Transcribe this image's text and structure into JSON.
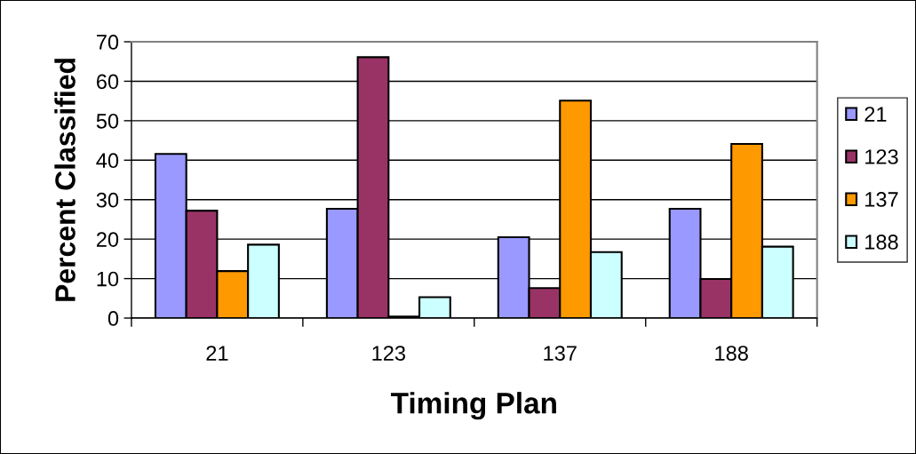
{
  "chart_data": {
    "type": "bar",
    "xlabel": "Timing Plan",
    "ylabel": "Percent Classified",
    "categories": [
      "21",
      "123",
      "137",
      "188"
    ],
    "series": [
      {
        "name": "21",
        "color": "#9999ff",
        "values": [
          41.6,
          27.7,
          20.5,
          27.7
        ]
      },
      {
        "name": "123",
        "color": "#993366",
        "values": [
          27.2,
          66.1,
          7.6,
          9.9
        ]
      },
      {
        "name": "137",
        "color": "#ff9900",
        "values": [
          11.9,
          0.4,
          55.1,
          44.1
        ]
      },
      {
        "name": "188",
        "color": "#ccffff",
        "values": [
          18.6,
          5.3,
          16.7,
          18.1
        ]
      }
    ],
    "ylim": [
      0,
      70
    ],
    "yticks": [
      0,
      10,
      20,
      30,
      40,
      50,
      60,
      70
    ],
    "grid": "y",
    "legend": "right"
  }
}
